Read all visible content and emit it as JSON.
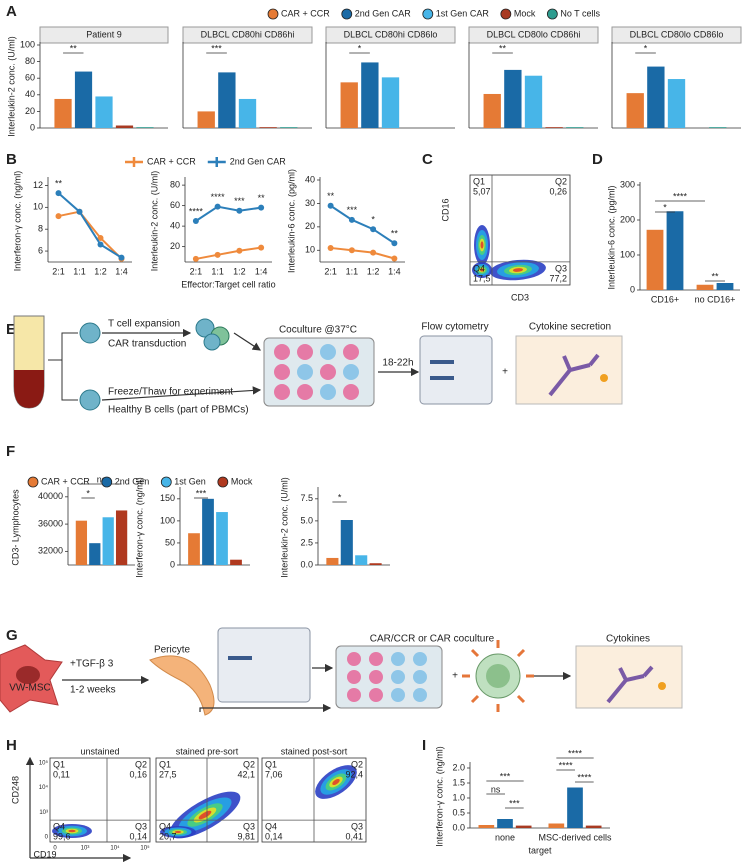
{
  "panel_labels": [
    "A",
    "B",
    "C",
    "D",
    "E",
    "F",
    "G",
    "H",
    "I"
  ],
  "chart_data": [
    {
      "type": "bar",
      "title": "Patient 9",
      "ylabel": "Interleukin-2 conc. (U/ml)",
      "ylim": [
        0,
        100
      ],
      "yticks": [
        0,
        20,
        40,
        60,
        80,
        100
      ],
      "series": [
        {
          "name": "CAR + CCR",
          "color": "#e57a35",
          "values": [
            35
          ]
        },
        {
          "name": "2nd Gen CAR",
          "color": "#1a6aa6",
          "values": [
            68
          ]
        },
        {
          "name": "1st Gen CAR",
          "color": "#47b5e8",
          "values": [
            38
          ]
        },
        {
          "name": "Mock",
          "color": "#a83a22",
          "values": [
            3
          ]
        },
        {
          "name": "No T cells",
          "color": "#2e9c8f",
          "values": [
            1
          ]
        }
      ],
      "annotations": [
        "**"
      ]
    },
    {
      "type": "bar",
      "title": "DLBCL CD80hi CD86hi",
      "ylim": [
        0,
        100
      ],
      "series": [
        {
          "color": "#e57a35",
          "values": [
            20
          ]
        },
        {
          "color": "#1a6aa6",
          "values": [
            67
          ]
        },
        {
          "color": "#47b5e8",
          "values": [
            35
          ]
        },
        {
          "color": "#a83a22",
          "values": [
            1
          ]
        },
        {
          "color": "#2e9c8f",
          "values": [
            1
          ]
        }
      ],
      "annotations": [
        "***"
      ]
    },
    {
      "type": "bar",
      "title": "DLBCL CD80hi CD86lo",
      "ylim": [
        0,
        100
      ],
      "series": [
        {
          "color": "#e57a35",
          "values": [
            55
          ]
        },
        {
          "color": "#1a6aa6",
          "values": [
            79
          ]
        },
        {
          "color": "#47b5e8",
          "values": [
            61
          ]
        },
        {
          "color": "#a83a22",
          "values": [
            0
          ]
        },
        {
          "color": "#2e9c8f",
          "values": [
            0
          ]
        }
      ],
      "annotations": [
        "*"
      ]
    },
    {
      "type": "bar",
      "title": "DLBCL CD80lo CD86hi",
      "ylim": [
        0,
        100
      ],
      "series": [
        {
          "color": "#e57a35",
          "values": [
            41
          ]
        },
        {
          "color": "#1a6aa6",
          "values": [
            70
          ]
        },
        {
          "color": "#47b5e8",
          "values": [
            63
          ]
        },
        {
          "color": "#a83a22",
          "values": [
            1
          ]
        },
        {
          "color": "#2e9c8f",
          "values": [
            1
          ]
        }
      ],
      "annotations": [
        "**"
      ]
    },
    {
      "type": "bar",
      "title": "DLBCL CD80lo CD86lo",
      "ylim": [
        0,
        100
      ],
      "series": [
        {
          "color": "#e57a35",
          "values": [
            42
          ]
        },
        {
          "color": "#1a6aa6",
          "values": [
            74
          ]
        },
        {
          "color": "#47b5e8",
          "values": [
            59
          ]
        },
        {
          "color": "#a83a22",
          "values": [
            0
          ]
        },
        {
          "color": "#2e9c8f",
          "values": [
            1
          ]
        }
      ],
      "annotations": [
        "*"
      ]
    },
    {
      "type": "line",
      "categories": [
        "2:1",
        "1:1",
        "1:2",
        "1:4"
      ],
      "ylabel": "Interferon-γ conc. (ng/ml)",
      "ylim": [
        5,
        12.5
      ],
      "yticks": [
        6,
        8,
        10,
        12
      ],
      "series": [
        {
          "name": "CAR + CCR",
          "color": "#ef8a3c",
          "values": [
            9.2,
            9.6,
            7.2,
            5.3
          ]
        },
        {
          "name": "2nd Gen CAR",
          "color": "#2c7fba",
          "values": [
            11.3,
            9.6,
            6.6,
            5.4
          ]
        }
      ],
      "annotations": [
        "**",
        null,
        null,
        null
      ]
    },
    {
      "type": "line",
      "categories": [
        "2:1",
        "1:1",
        "1:2",
        "1:4"
      ],
      "ylabel": "Interleukin-2 conc. (U/ml)",
      "xlabel": "Effector:Target cell ratio",
      "ylim": [
        5,
        85
      ],
      "yticks": [
        20,
        40,
        60,
        80
      ],
      "series": [
        {
          "color": "#ef8a3c",
          "values": [
            8,
            12,
            16,
            19
          ]
        },
        {
          "color": "#2c7fba",
          "values": [
            45,
            59,
            55,
            58
          ]
        }
      ],
      "annotations": [
        "****",
        "****",
        "***",
        "**"
      ]
    },
    {
      "type": "line",
      "categories": [
        "2:1",
        "1:1",
        "1:2",
        "1:4"
      ],
      "ylabel": "Interleukin-6 conc. (pg/ml)",
      "ylim": [
        5,
        40
      ],
      "yticks": [
        10,
        20,
        30,
        40
      ],
      "series": [
        {
          "color": "#ef8a3c",
          "values": [
            11,
            10,
            9,
            6.5
          ]
        },
        {
          "color": "#2c7fba",
          "values": [
            29,
            23,
            19,
            13
          ]
        }
      ],
      "annotations": [
        "**",
        "***",
        "*",
        "**"
      ]
    },
    {
      "type": "bar",
      "categories": [
        "CD16+",
        "no CD16+"
      ],
      "ylabel": "Interleukin-6 conc. (pg/ml)",
      "ylim": [
        0,
        300
      ],
      "yticks": [
        0,
        100,
        200,
        300
      ],
      "series": [
        {
          "color": "#e57a35",
          "values": [
            172,
            15
          ]
        },
        {
          "color": "#1a6aa6",
          "values": [
            225,
            20
          ]
        }
      ],
      "annotations": [
        "*",
        "****",
        "**"
      ]
    },
    {
      "type": "bar",
      "ylabel": "CD3- Lymphocytes",
      "ylim": [
        30000,
        41000
      ],
      "yticks": [
        32000,
        36000,
        40000
      ],
      "series": [
        {
          "name": "CAR + CCR",
          "color": "#e57a35",
          "values": [
            36500
          ]
        },
        {
          "name": "2nd Gen",
          "color": "#1a6aa6",
          "values": [
            33200
          ]
        },
        {
          "name": "1st Gen",
          "color": "#47b5e8",
          "values": [
            37000
          ]
        },
        {
          "name": "Mock",
          "color": "#b0391f",
          "values": [
            38000
          ]
        }
      ],
      "annotations": [
        "ns",
        "*"
      ]
    },
    {
      "type": "bar",
      "ylabel": "Interferon-γ conc. (ng/ml)",
      "ylim": [
        0,
        170
      ],
      "yticks": [
        0,
        50,
        100,
        150
      ],
      "series": [
        {
          "color": "#e57a35",
          "values": [
            72
          ]
        },
        {
          "color": "#1a6aa6",
          "values": [
            150
          ]
        },
        {
          "color": "#47b5e8",
          "values": [
            120
          ]
        },
        {
          "color": "#b0391f",
          "values": [
            12
          ]
        }
      ],
      "annotations": [
        "***"
      ]
    },
    {
      "type": "bar",
      "ylabel": "Interleukin-2 conc. (U/ml)",
      "ylim": [
        0,
        8.5
      ],
      "yticks": [
        {
          "value": 0,
          "label": "0.0"
        },
        2.5,
        {
          "value": 5,
          "label": "5.0"
        },
        7.5
      ],
      "series": [
        {
          "color": "#e57a35",
          "values": [
            0.8
          ]
        },
        {
          "color": "#1a6aa6",
          "values": [
            5.1
          ]
        },
        {
          "color": "#47b5e8",
          "values": [
            1.1
          ]
        },
        {
          "color": "#b0391f",
          "values": [
            0.2
          ]
        }
      ],
      "annotations": [
        "*"
      ]
    },
    {
      "type": "bar",
      "categories": [
        "none",
        "MSC-derived cells"
      ],
      "ylabel": "Interferon-γ conc. (ng/ml)",
      "xlabel": "target",
      "ylim": [
        0,
        2.1
      ],
      "yticks": [
        {
          "value": 0,
          "label": "0.0"
        },
        0.5,
        {
          "value": 1,
          "label": "1.0"
        },
        1.5,
        {
          "value": 2,
          "label": "2.0"
        }
      ],
      "series": [
        {
          "color": "#e57a35",
          "values": [
            0.1,
            0.15
          ]
        },
        {
          "color": "#1a6aa6",
          "values": [
            0.3,
            1.35
          ]
        },
        {
          "color": "#a83a22",
          "values": [
            0.08,
            0.08
          ]
        }
      ],
      "annotations": [
        "***",
        "ns",
        "***",
        "****",
        "****",
        "****"
      ]
    }
  ],
  "flow_plots": [
    {
      "xlabel": "CD3",
      "ylabel": "CD16",
      "quadrants": [
        {
          "name": "Q1",
          "value": "5,07"
        },
        {
          "name": "Q2",
          "value": "0,26"
        },
        {
          "name": "Q3",
          "value": "77,2"
        },
        {
          "name": "Q4",
          "value": "17,5"
        }
      ]
    },
    {
      "title": "unstained",
      "xlabel": "CD19",
      "ylabel": "CD248",
      "y_tick_labels": [
        "10⁵",
        "10⁴",
        "10³",
        "0"
      ],
      "x_tick_labels": [
        "0",
        "10³",
        "10⁴",
        "10⁵"
      ],
      "quadrants": [
        {
          "name": "Q1",
          "value": "0,11"
        },
        {
          "name": "Q2",
          "value": "0,16"
        },
        {
          "name": "Q3",
          "value": "0,14"
        },
        {
          "name": "Q4",
          "value": "99,6"
        }
      ]
    },
    {
      "title": "stained pre-sort",
      "quadrants": [
        {
          "name": "Q1",
          "value": "27,5"
        },
        {
          "name": "Q2",
          "value": "42,1"
        },
        {
          "name": "Q3",
          "value": "9,81"
        },
        {
          "name": "Q4",
          "value": "20,7"
        }
      ]
    },
    {
      "title": "stained post-sort",
      "quadrants": [
        {
          "name": "Q1",
          "value": "7,06"
        },
        {
          "name": "Q2",
          "value": "92,4"
        },
        {
          "name": "Q3",
          "value": "0,41"
        },
        {
          "name": "Q4",
          "value": "0,14"
        }
      ]
    }
  ],
  "diagram_E": {
    "expansion": "T cell expansion",
    "transduction": "CAR transduction",
    "freeze": "Freeze/Thaw for experiment",
    "bcells": "Healthy B cells (part of PBMCs)",
    "coculture": "Coculture @37°C",
    "time": "18-22h",
    "flow": "Flow cytometry",
    "plus": "+",
    "cytokine": "Cytokine secretion"
  },
  "diagram_G": {
    "cell": "VW-MSC",
    "treatment": "+TGF-β 3",
    "duration": "1-2 weeks",
    "pericyte": "Pericyte",
    "coculture": "CAR/CCR or CAR coculture",
    "plus": "+",
    "cytokines": "Cytokines"
  }
}
